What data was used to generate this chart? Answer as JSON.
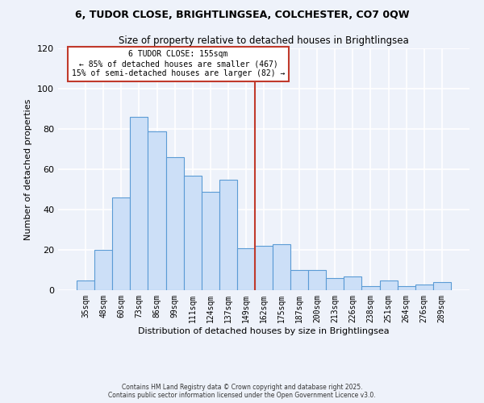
{
  "title1": "6, TUDOR CLOSE, BRIGHTLINGSEA, COLCHESTER, CO7 0QW",
  "title2": "Size of property relative to detached houses in Brightlingsea",
  "xlabel": "Distribution of detached houses by size in Brightlingsea",
  "ylabel": "Number of detached properties",
  "bar_labels": [
    "35sqm",
    "48sqm",
    "60sqm",
    "73sqm",
    "86sqm",
    "99sqm",
    "111sqm",
    "124sqm",
    "137sqm",
    "149sqm",
    "162sqm",
    "175sqm",
    "187sqm",
    "200sqm",
    "213sqm",
    "226sqm",
    "238sqm",
    "251sqm",
    "264sqm",
    "276sqm",
    "289sqm"
  ],
  "bar_values": [
    5,
    20,
    46,
    86,
    79,
    66,
    57,
    49,
    55,
    21,
    22,
    23,
    10,
    10,
    6,
    7,
    2,
    5,
    2,
    3,
    4
  ],
  "bar_color": "#ccdff7",
  "bar_edge_color": "#5b9bd5",
  "reference_line_label": "6 TUDOR CLOSE: 155sqm",
  "annotation_line1": "← 85% of detached houses are smaller (467)",
  "annotation_line2": "15% of semi-detached houses are larger (82) →",
  "vline_color": "#c0392b",
  "annotation_box_color": "#ffffff",
  "annotation_box_edge": "#c0392b",
  "ylim": [
    0,
    120
  ],
  "yticks": [
    0,
    20,
    40,
    60,
    80,
    100,
    120
  ],
  "bg_color": "#eef2fa",
  "grid_color": "#ffffff",
  "footer1": "Contains HM Land Registry data © Crown copyright and database right 2025.",
  "footer2": "Contains public sector information licensed under the Open Government Licence v3.0."
}
